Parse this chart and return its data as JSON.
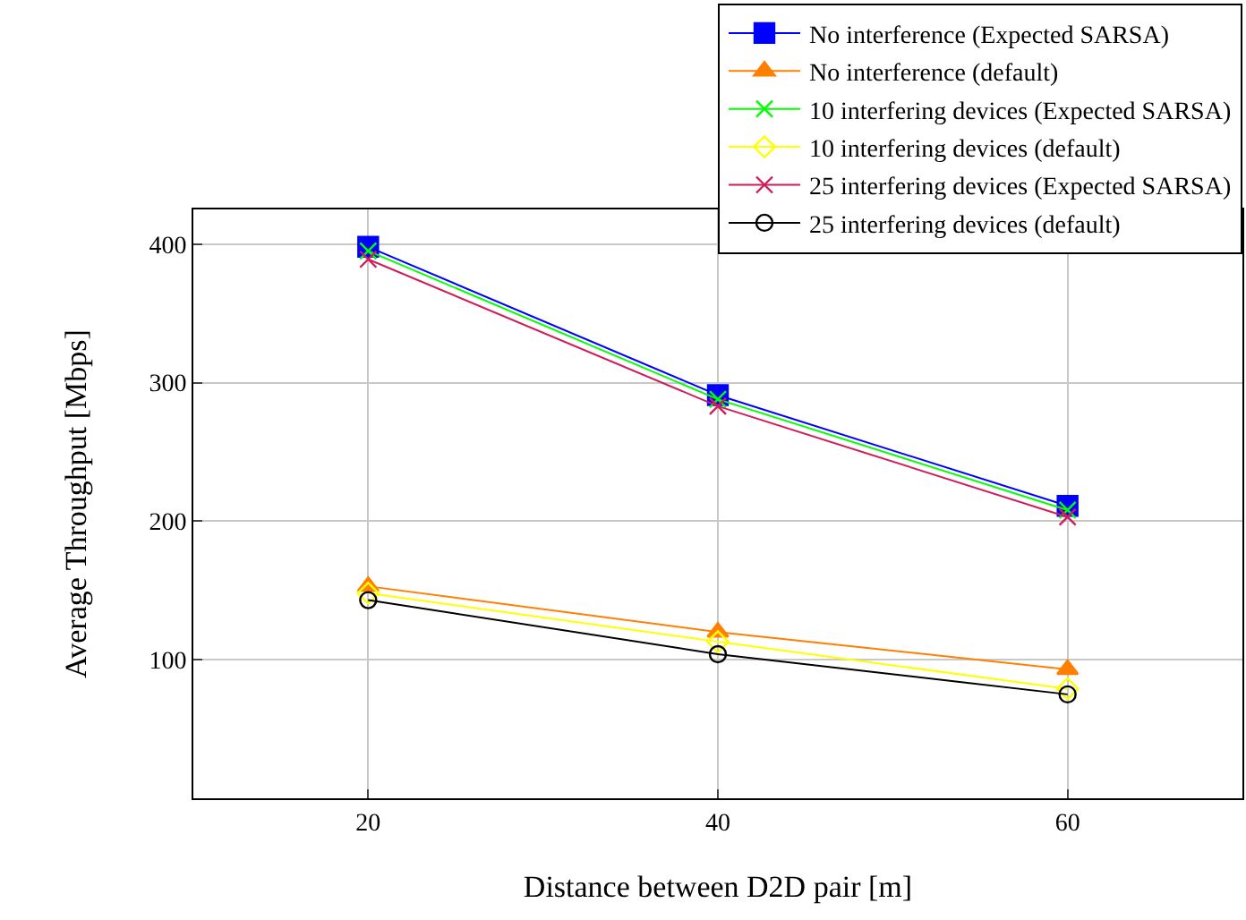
{
  "chart_data": {
    "type": "line",
    "xlabel": "Distance between D2D pair [m]",
    "ylabel": "Average Throughput [Mbps]",
    "x": [
      20,
      40,
      60
    ],
    "series": [
      {
        "name": "No interference (Expected SARSA)",
        "color": "#0000ff",
        "marker": "square",
        "values": [
          398,
          291,
          211
        ]
      },
      {
        "name": "No interference (default)",
        "color": "#ff8000",
        "marker": "triangle",
        "values": [
          153,
          120,
          93
        ]
      },
      {
        "name": "10 interfering devices (Expected SARSA)",
        "color": "#00ff00",
        "marker": "cross",
        "values": [
          395,
          288,
          208
        ]
      },
      {
        "name": "10 interfering devices (default)",
        "color": "#ffff00",
        "marker": "diamond",
        "values": [
          148,
          113,
          79
        ]
      },
      {
        "name": "25 interfering devices (Expected SARSA)",
        "color": "#d01c5b",
        "marker": "cross",
        "values": [
          389,
          283,
          203
        ]
      },
      {
        "name": "25 interfering devices (default)",
        "color": "#000000",
        "marker": "circle",
        "values": [
          143,
          104,
          75
        ]
      }
    ],
    "xlim": [
      10,
      70
    ],
    "ylim": [
      0,
      425
    ],
    "xticks": [
      20,
      40,
      60
    ],
    "yticks": [
      100,
      200,
      300,
      400
    ],
    "grid": true,
    "legend": "top right",
    "line_style": "solid"
  }
}
